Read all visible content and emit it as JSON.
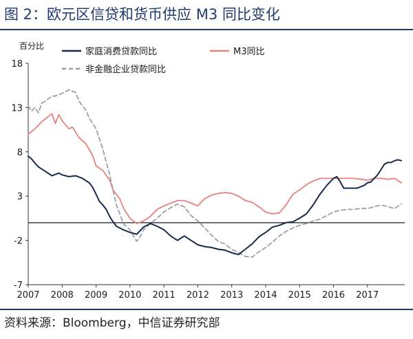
{
  "title": "图 2：欧元区信贷和货币供应 M3 同比变化",
  "source": "资料来源：Bloomberg，中信证券研究部",
  "chart_data": {
    "type": "line",
    "y_unit_label": "百分比",
    "ylim": [
      -7,
      18
    ],
    "yticks": [
      -7,
      -2,
      3,
      8,
      13,
      18
    ],
    "xlim": [
      2007,
      2018.1
    ],
    "xticks": [
      2007,
      2008,
      2009,
      2010,
      2011,
      2012,
      2013,
      2014,
      2015,
      2016,
      2017
    ],
    "grid": false,
    "zero_line": true,
    "legend": [
      "家庭消费贷款同比",
      "M3同比",
      "非金融企业贷款同比"
    ],
    "series": [
      {
        "name": "家庭消费贷款同比",
        "color": "#17294a",
        "style": "solid",
        "points": [
          [
            2007.0,
            7.5
          ],
          [
            2007.1,
            7.2
          ],
          [
            2007.2,
            6.7
          ],
          [
            2007.3,
            6.3
          ],
          [
            2007.5,
            5.8
          ],
          [
            2007.7,
            5.3
          ],
          [
            2007.9,
            5.6
          ],
          [
            2008.0,
            5.4
          ],
          [
            2008.2,
            5.2
          ],
          [
            2008.4,
            5.3
          ],
          [
            2008.6,
            5.0
          ],
          [
            2008.8,
            4.5
          ],
          [
            2008.9,
            4.0
          ],
          [
            2009.0,
            3.2
          ],
          [
            2009.1,
            2.4
          ],
          [
            2009.2,
            2.0
          ],
          [
            2009.3,
            1.5
          ],
          [
            2009.4,
            0.7
          ],
          [
            2009.5,
            0.1
          ],
          [
            2009.6,
            -0.4
          ],
          [
            2009.8,
            -0.8
          ],
          [
            2010.0,
            -1.1
          ],
          [
            2010.2,
            -1.3
          ],
          [
            2010.4,
            -0.5
          ],
          [
            2010.6,
            -0.1
          ],
          [
            2010.8,
            -0.4
          ],
          [
            2011.0,
            -0.8
          ],
          [
            2011.2,
            -1.5
          ],
          [
            2011.4,
            -2.0
          ],
          [
            2011.6,
            -1.5
          ],
          [
            2011.8,
            -2.0
          ],
          [
            2012.0,
            -2.5
          ],
          [
            2012.2,
            -2.7
          ],
          [
            2012.4,
            -2.8
          ],
          [
            2012.6,
            -3.0
          ],
          [
            2012.8,
            -3.1
          ],
          [
            2013.0,
            -3.4
          ],
          [
            2013.2,
            -3.6
          ],
          [
            2013.4,
            -3.0
          ],
          [
            2013.6,
            -2.4
          ],
          [
            2013.8,
            -1.6
          ],
          [
            2014.0,
            -1.1
          ],
          [
            2014.2,
            -0.5
          ],
          [
            2014.4,
            -0.3
          ],
          [
            2014.6,
            0.0
          ],
          [
            2014.8,
            0.1
          ],
          [
            2015.0,
            0.5
          ],
          [
            2015.2,
            1.0
          ],
          [
            2015.4,
            2.0
          ],
          [
            2015.6,
            3.2
          ],
          [
            2015.8,
            4.2
          ],
          [
            2016.0,
            5.0
          ],
          [
            2016.1,
            5.2
          ],
          [
            2016.2,
            4.6
          ],
          [
            2016.3,
            3.9
          ],
          [
            2016.5,
            3.9
          ],
          [
            2016.7,
            3.9
          ],
          [
            2016.9,
            4.2
          ],
          [
            2017.0,
            4.5
          ],
          [
            2017.1,
            4.6
          ],
          [
            2017.2,
            5.0
          ],
          [
            2017.3,
            5.4
          ],
          [
            2017.4,
            6.0
          ],
          [
            2017.5,
            6.6
          ],
          [
            2017.6,
            6.8
          ],
          [
            2017.7,
            6.8
          ],
          [
            2017.8,
            7.0
          ],
          [
            2017.9,
            7.1
          ],
          [
            2018.0,
            7.0
          ]
        ]
      },
      {
        "name": "M3同比",
        "color": "#e8807d",
        "style": "solid",
        "points": [
          [
            2007.0,
            10.0
          ],
          [
            2007.2,
            10.6
          ],
          [
            2007.4,
            11.4
          ],
          [
            2007.5,
            11.7
          ],
          [
            2007.7,
            12.3
          ],
          [
            2007.8,
            11.2
          ],
          [
            2007.9,
            12.2
          ],
          [
            2008.0,
            11.5
          ],
          [
            2008.2,
            10.6
          ],
          [
            2008.3,
            10.8
          ],
          [
            2008.5,
            9.6
          ],
          [
            2008.7,
            8.9
          ],
          [
            2008.9,
            7.6
          ],
          [
            2009.0,
            6.4
          ],
          [
            2009.2,
            5.9
          ],
          [
            2009.4,
            4.8
          ],
          [
            2009.5,
            3.7
          ],
          [
            2009.7,
            2.7
          ],
          [
            2009.8,
            1.7
          ],
          [
            2010.0,
            0.5
          ],
          [
            2010.2,
            -0.1
          ],
          [
            2010.4,
            0.2
          ],
          [
            2010.6,
            0.7
          ],
          [
            2010.8,
            1.5
          ],
          [
            2011.0,
            1.9
          ],
          [
            2011.2,
            2.2
          ],
          [
            2011.4,
            2.5
          ],
          [
            2011.6,
            2.5
          ],
          [
            2011.8,
            2.2
          ],
          [
            2012.0,
            1.9
          ],
          [
            2012.2,
            2.7
          ],
          [
            2012.4,
            3.1
          ],
          [
            2012.6,
            3.3
          ],
          [
            2012.8,
            3.4
          ],
          [
            2013.0,
            3.3
          ],
          [
            2013.2,
            3.0
          ],
          [
            2013.4,
            2.5
          ],
          [
            2013.6,
            2.3
          ],
          [
            2013.8,
            1.8
          ],
          [
            2014.0,
            1.2
          ],
          [
            2014.2,
            1.0
          ],
          [
            2014.4,
            1.1
          ],
          [
            2014.6,
            2.0
          ],
          [
            2014.8,
            3.2
          ],
          [
            2015.0,
            3.7
          ],
          [
            2015.2,
            4.3
          ],
          [
            2015.4,
            4.7
          ],
          [
            2015.6,
            5.0
          ],
          [
            2015.8,
            5.0
          ],
          [
            2016.0,
            5.0
          ],
          [
            2016.2,
            5.0
          ],
          [
            2016.4,
            5.0
          ],
          [
            2016.6,
            5.0
          ],
          [
            2016.8,
            4.9
          ],
          [
            2017.0,
            4.8
          ],
          [
            2017.2,
            5.0
          ],
          [
            2017.4,
            5.0
          ],
          [
            2017.6,
            4.9
          ],
          [
            2017.8,
            5.0
          ],
          [
            2018.0,
            4.5
          ]
        ]
      },
      {
        "name": "非金融企业贷款同比",
        "color": "#9aa0a8",
        "style": "dashed",
        "points": [
          [
            2007.0,
            13.2
          ],
          [
            2007.1,
            12.6
          ],
          [
            2007.2,
            13.0
          ],
          [
            2007.3,
            12.4
          ],
          [
            2007.4,
            13.5
          ],
          [
            2007.5,
            13.7
          ],
          [
            2007.6,
            14.0
          ],
          [
            2007.7,
            14.3
          ],
          [
            2007.8,
            14.3
          ],
          [
            2008.0,
            14.6
          ],
          [
            2008.2,
            15.0
          ],
          [
            2008.4,
            14.7
          ],
          [
            2008.5,
            13.7
          ],
          [
            2008.7,
            12.7
          ],
          [
            2008.8,
            11.8
          ],
          [
            2009.0,
            10.6
          ],
          [
            2009.2,
            8.3
          ],
          [
            2009.4,
            5.4
          ],
          [
            2009.5,
            3.7
          ],
          [
            2009.6,
            2.0
          ],
          [
            2009.7,
            1.0
          ],
          [
            2009.8,
            -0.1
          ],
          [
            2010.0,
            -0.8
          ],
          [
            2010.1,
            -1.5
          ],
          [
            2010.2,
            -2.1
          ],
          [
            2010.3,
            -1.6
          ],
          [
            2010.4,
            -0.8
          ],
          [
            2010.6,
            -0.1
          ],
          [
            2010.8,
            0.5
          ],
          [
            2011.0,
            1.2
          ],
          [
            2011.2,
            1.7
          ],
          [
            2011.4,
            2.1
          ],
          [
            2011.6,
            1.8
          ],
          [
            2011.8,
            0.8
          ],
          [
            2012.0,
            0.2
          ],
          [
            2012.2,
            -0.6
          ],
          [
            2012.4,
            -1.4
          ],
          [
            2012.6,
            -2.1
          ],
          [
            2012.8,
            -2.4
          ],
          [
            2013.0,
            -3.0
          ],
          [
            2013.2,
            -3.4
          ],
          [
            2013.4,
            -3.8
          ],
          [
            2013.6,
            -3.9
          ],
          [
            2013.8,
            -3.3
          ],
          [
            2014.0,
            -2.8
          ],
          [
            2014.2,
            -2.2
          ],
          [
            2014.4,
            -1.5
          ],
          [
            2014.6,
            -1.0
          ],
          [
            2014.8,
            -0.6
          ],
          [
            2015.0,
            -0.3
          ],
          [
            2015.2,
            -0.1
          ],
          [
            2015.4,
            0.2
          ],
          [
            2015.6,
            0.4
          ],
          [
            2015.8,
            0.8
          ],
          [
            2016.0,
            1.2
          ],
          [
            2016.2,
            1.4
          ],
          [
            2016.4,
            1.5
          ],
          [
            2016.6,
            1.5
          ],
          [
            2016.8,
            1.6
          ],
          [
            2017.0,
            1.6
          ],
          [
            2017.2,
            1.8
          ],
          [
            2017.4,
            2.0
          ],
          [
            2017.6,
            1.8
          ],
          [
            2017.8,
            1.6
          ],
          [
            2018.0,
            2.1
          ]
        ]
      }
    ]
  }
}
